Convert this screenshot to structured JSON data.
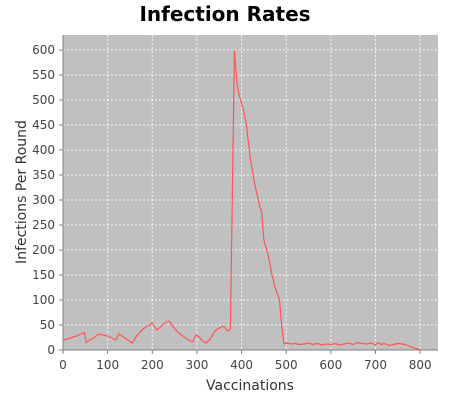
{
  "chart_data": {
    "type": "line",
    "title": "Infection Rates",
    "xlabel": "Vaccinations",
    "ylabel": "Infections Per Round",
    "xlim": [
      0,
      840
    ],
    "ylim": [
      0,
      630
    ],
    "xticks": [
      0,
      100,
      200,
      300,
      400,
      500,
      600,
      700,
      800
    ],
    "yticks": [
      0,
      50,
      100,
      150,
      200,
      250,
      300,
      350,
      400,
      450,
      500,
      550,
      600
    ],
    "grid": true,
    "plot_background": "#c0c0c0",
    "series": [
      {
        "color": "#ff5555",
        "points": [
          [
            0,
            20
          ],
          [
            10,
            22
          ],
          [
            20,
            25
          ],
          [
            30,
            28
          ],
          [
            40,
            32
          ],
          [
            48,
            35
          ],
          [
            52,
            15
          ],
          [
            60,
            20
          ],
          [
            70,
            25
          ],
          [
            80,
            32
          ],
          [
            90,
            30
          ],
          [
            100,
            28
          ],
          [
            110,
            24
          ],
          [
            118,
            20
          ],
          [
            125,
            32
          ],
          [
            135,
            26
          ],
          [
            145,
            20
          ],
          [
            155,
            14
          ],
          [
            165,
            28
          ],
          [
            175,
            38
          ],
          [
            185,
            46
          ],
          [
            195,
            50
          ],
          [
            200,
            54
          ],
          [
            210,
            40
          ],
          [
            218,
            46
          ],
          [
            228,
            54
          ],
          [
            238,
            58
          ],
          [
            248,
            45
          ],
          [
            258,
            35
          ],
          [
            268,
            28
          ],
          [
            278,
            22
          ],
          [
            290,
            16
          ],
          [
            298,
            30
          ],
          [
            305,
            26
          ],
          [
            313,
            18
          ],
          [
            320,
            14
          ],
          [
            330,
            22
          ],
          [
            340,
            38
          ],
          [
            350,
            44
          ],
          [
            360,
            48
          ],
          [
            368,
            38
          ],
          [
            375,
            42
          ],
          [
            384,
            598
          ],
          [
            390,
            530
          ],
          [
            396,
            505
          ],
          [
            403,
            485
          ],
          [
            410,
            455
          ],
          [
            420,
            380
          ],
          [
            430,
            330
          ],
          [
            440,
            290
          ],
          [
            445,
            275
          ],
          [
            450,
            220
          ],
          [
            458,
            195
          ],
          [
            463,
            175
          ],
          [
            468,
            150
          ],
          [
            475,
            125
          ],
          [
            485,
            100
          ],
          [
            490,
            45
          ],
          [
            495,
            12
          ],
          [
            502,
            14
          ],
          [
            510,
            12
          ],
          [
            520,
            13
          ],
          [
            530,
            11
          ],
          [
            540,
            12
          ],
          [
            550,
            14
          ],
          [
            560,
            11
          ],
          [
            570,
            13
          ],
          [
            580,
            10
          ],
          [
            590,
            12
          ],
          [
            600,
            11
          ],
          [
            610,
            13
          ],
          [
            620,
            10
          ],
          [
            630,
            12
          ],
          [
            640,
            14
          ],
          [
            650,
            11
          ],
          [
            660,
            15
          ],
          [
            670,
            13
          ],
          [
            680,
            12
          ],
          [
            690,
            14
          ],
          [
            700,
            10
          ],
          [
            705,
            15
          ],
          [
            712,
            11
          ],
          [
            720,
            13
          ],
          [
            730,
            9
          ],
          [
            740,
            11
          ],
          [
            750,
            13
          ],
          [
            760,
            12
          ],
          [
            770,
            10
          ],
          [
            780,
            6
          ],
          [
            790,
            3
          ],
          [
            800,
            1
          ]
        ]
      }
    ]
  }
}
